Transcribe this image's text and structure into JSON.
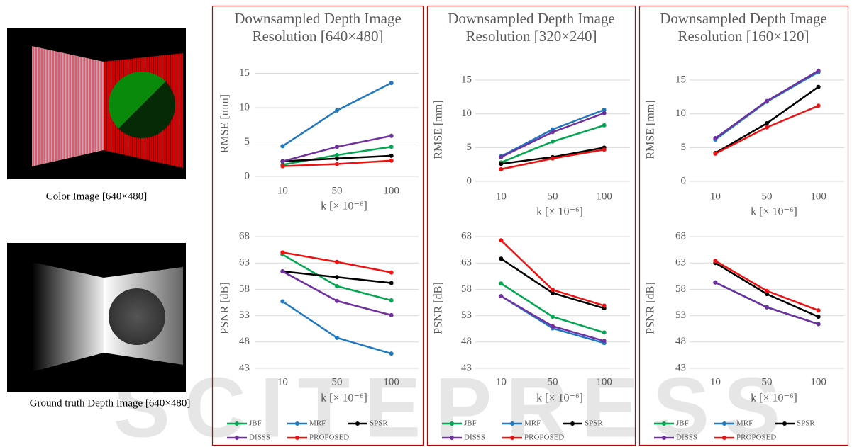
{
  "figure": {
    "images": [
      {
        "caption": "Color Image [640×480]"
      },
      {
        "caption": "Ground truth Depth Image [640×480]"
      }
    ],
    "watermark": "SCITEPRESS"
  },
  "chart_data": [
    {
      "type": "line",
      "title": "Downsampled Depth Image Resolution [640×480]",
      "categories": [
        10,
        50,
        100
      ],
      "xlabel": "k [× 10⁻⁶]",
      "legend": "bottom",
      "series": [
        {
          "name": "JBF",
          "color": "#00a650"
        },
        {
          "name": "MRF",
          "color": "#1f78c1"
        },
        {
          "name": "SPSR",
          "color": "#000000"
        },
        {
          "name": "DISSS",
          "color": "#7030a0"
        },
        {
          "name": "PROPOSED",
          "color": "#ee1111"
        }
      ],
      "subplots": [
        {
          "ylabel": "RMSE [mm]",
          "ylim": [
            0,
            17
          ],
          "yticks": [
            0,
            5,
            10,
            15
          ],
          "grid": true,
          "values": [
            [
              1.7,
              3.1,
              4.3
            ],
            [
              4.4,
              9.6,
              13.6
            ],
            [
              2.2,
              2.6,
              3.0
            ],
            [
              2.2,
              4.3,
              5.9
            ],
            [
              1.5,
              1.8,
              2.3
            ]
          ]
        },
        {
          "ylabel": "PSNR [dB]",
          "ylim": [
            43,
            68
          ],
          "yticks": [
            43,
            48,
            53,
            58,
            63,
            68
          ],
          "grid": true,
          "values": [
            [
              64.6,
              58.6,
              55.9
            ],
            [
              55.7,
              48.8,
              45.8
            ],
            [
              61.4,
              60.3,
              59.2
            ],
            [
              61.4,
              55.8,
              53.1
            ],
            [
              65.0,
              63.2,
              61.2
            ]
          ]
        }
      ]
    },
    {
      "type": "line",
      "title": "Downsampled Depth Image Resolution [320×240]",
      "categories": [
        10,
        50,
        100
      ],
      "xlabel": "k [× 10⁻⁶]",
      "legend": "bottom",
      "series": [
        {
          "name": "JBF",
          "color": "#00a650"
        },
        {
          "name": "MRF",
          "color": "#1f78c1"
        },
        {
          "name": "SPSR",
          "color": "#000000"
        },
        {
          "name": "DISSS",
          "color": "#7030a0"
        },
        {
          "name": "PROPOSED",
          "color": "#ee1111"
        }
      ],
      "subplots": [
        {
          "ylabel": "RMSE [mm]",
          "ylim": [
            0,
            17
          ],
          "yticks": [
            0,
            5,
            10,
            15
          ],
          "grid": true,
          "values": [
            [
              2.8,
              5.9,
              8.3
            ],
            [
              3.7,
              7.7,
              10.6
            ],
            [
              2.6,
              3.6,
              5.0
            ],
            [
              3.6,
              7.3,
              10.1
            ],
            [
              1.8,
              3.4,
              4.7
            ]
          ]
        },
        {
          "ylabel": "PSNR [dB]",
          "ylim": [
            43,
            68
          ],
          "yticks": [
            43,
            48,
            53,
            58,
            63,
            68
          ],
          "grid": true,
          "values": [
            [
              59.1,
              52.8,
              49.8
            ],
            [
              56.7,
              50.6,
              47.8
            ],
            [
              63.8,
              57.3,
              54.4
            ],
            [
              56.7,
              51.0,
              48.2
            ],
            [
              67.3,
              57.9,
              54.9
            ]
          ]
        }
      ]
    },
    {
      "type": "line",
      "title": "Downsampled Depth Image Resolution [160×120]",
      "categories": [
        10,
        50,
        100
      ],
      "xlabel": "k [× 10⁻⁶]",
      "legend": "bottom",
      "series": [
        {
          "name": "JBF",
          "color": "#00a650"
        },
        {
          "name": "MRF",
          "color": "#1f78c1"
        },
        {
          "name": "SPSR",
          "color": "#000000"
        },
        {
          "name": "DISSS",
          "color": "#7030a0"
        },
        {
          "name": "PROPOSED",
          "color": "#ee1111"
        }
      ],
      "subplots": [
        {
          "ylabel": "RMSE [mm]",
          "ylim": [
            0,
            17
          ],
          "yticks": [
            0,
            5,
            10,
            15
          ],
          "grid": true,
          "values": [
            [
              6.2,
              11.8,
              16.2
            ],
            [
              6.2,
              11.8,
              16.2
            ],
            [
              4.2,
              8.6,
              14.0
            ],
            [
              6.4,
              11.9,
              16.4
            ],
            [
              4.1,
              8.0,
              11.2
            ]
          ]
        },
        {
          "ylabel": "PSNR [dB]",
          "ylim": [
            43,
            68
          ],
          "yticks": [
            43,
            48,
            53,
            58,
            63,
            68
          ],
          "grid": true,
          "values": [
            [
              59.3,
              54.6,
              51.4
            ],
            [
              59.3,
              54.6,
              51.4
            ],
            [
              63.0,
              57.1,
              52.8
            ],
            [
              59.3,
              54.6,
              51.4
            ],
            [
              63.4,
              57.7,
              54.0
            ]
          ]
        }
      ]
    }
  ]
}
